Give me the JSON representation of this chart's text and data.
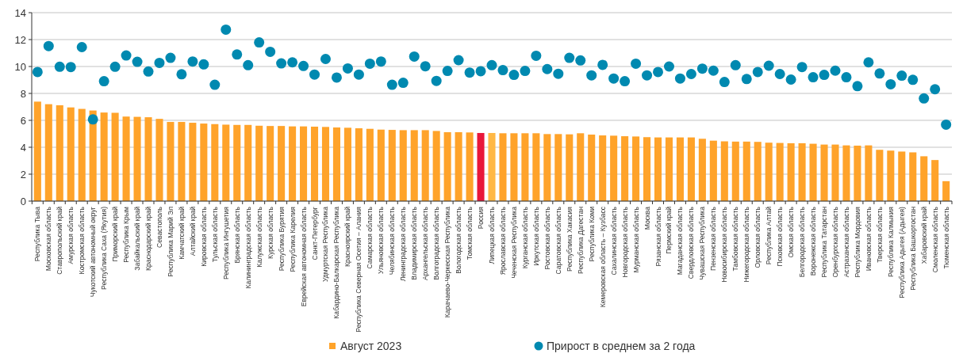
{
  "chart_data": {
    "type": "bar",
    "categories": [
      "Республика Тыва",
      "Московская область",
      "Ставропольский край",
      "Амурская область",
      "Костромская область",
      "Чукотский автономный округ",
      "Республика Саха (Якутия)",
      "Приморский край",
      "Республика Крым",
      "Забайкальский край",
      "Краснодарский край",
      "Севастополь",
      "Республика Марий Эл",
      "Камчатский край",
      "Алтайский край",
      "Кировская область",
      "Тульская область",
      "Республика Ингушетия",
      "Брянская область",
      "Калининградская область",
      "Калужская область",
      "Курская область",
      "Республика Бурятия",
      "Республика Карелия",
      "Еврейская автономная область",
      "Санкт-Петербург",
      "Удмуртская Республика",
      "Кабардино-Балкарская Республика",
      "Красноярский край",
      "Республика Северная Осетия – Алания",
      "Самарская область",
      "Ульяновская область",
      "Челябинская область",
      "Ленинградская область",
      "Владимирская область",
      "Архангельская область",
      "Волгоградская область",
      "Карачаево-Черкесская Республика",
      "Вологодская область",
      "Томская область",
      "Россия",
      "Липецкая область",
      "Ярославская область",
      "Чеченская Республика",
      "Курганская область",
      "Иркутская область",
      "Ростовская область",
      "Саратовская область",
      "Республика Хакасия",
      "Республика Дагестан",
      "Республика Коми",
      "Кемеровская область – Кузбасс",
      "Сахалинская область",
      "Новгородская область",
      "Мурманская область",
      "Москва",
      "Рязанская область",
      "Пермский край",
      "Магаданская область",
      "Свердловская область",
      "Чувашская Республика",
      "Пензенская область",
      "Новосибирская область",
      "Тамбовская область",
      "Нижегородская область",
      "Орловская область",
      "Республика Алтай",
      "Псковская область",
      "Омская область",
      "Белгородская область",
      "Воронежская область",
      "Республика Татарстан",
      "Оренбургская область",
      "Астраханская область",
      "Республика Мордовия",
      "Ивановская область",
      "Тверская область",
      "Республика Калмыкия",
      "Республика Адыгея (Адыгея)",
      "Республика Башкортостан",
      "Хабаровский край",
      "Смоленская область",
      "Тюменская область"
    ],
    "series": [
      {
        "name": "Август 2023",
        "color": "#ffa32a",
        "colors": [
          "#ffa32a",
          "#ffa32a",
          "#ffa32a",
          "#ffa32a",
          "#ffa32a",
          "#ffa32a",
          "#ffa32a",
          "#ffa32a",
          "#ffa32a",
          "#ffa32a",
          "#ffa32a",
          "#ffa32a",
          "#ffa32a",
          "#ffa32a",
          "#ffa32a",
          "#ffa32a",
          "#ffa32a",
          "#ffa32a",
          "#ffa32a",
          "#ffa32a",
          "#ffa32a",
          "#ffa32a",
          "#ffa32a",
          "#ffa32a",
          "#ffa32a",
          "#ffa32a",
          "#ffa32a",
          "#ffa32a",
          "#ffa32a",
          "#ffa32a",
          "#ffa32a",
          "#ffa32a",
          "#ffa32a",
          "#ffa32a",
          "#ffa32a",
          "#ffa32a",
          "#ffa32a",
          "#ffa32a",
          "#ffa32a",
          "#ffa32a",
          "#e8173a",
          "#ffb845",
          "#ffa32a",
          "#ffa32a",
          "#ffa32a",
          "#ffa32a",
          "#ffa32a",
          "#ffa32a",
          "#ffa32a",
          "#ffa32a",
          "#ffa32a",
          "#ffa32a",
          "#ffa32a",
          "#ffa32a",
          "#ffa32a",
          "#ffa32a",
          "#ffa32a",
          "#ffa32a",
          "#ffa32a",
          "#ffa32a",
          "#ffa32a",
          "#ffa32a",
          "#ffa32a",
          "#ffa32a",
          "#ffa32a",
          "#ffa32a",
          "#ffa32a",
          "#ffa32a",
          "#ffa32a",
          "#ffa32a",
          "#ffa32a",
          "#ffa32a",
          "#ffa32a",
          "#ffa32a",
          "#ffa32a",
          "#ffa32a",
          "#ffa32a",
          "#ffa32a",
          "#ffa32a",
          "#ffa32a",
          "#ffa32a",
          "#ffa32a",
          "#ffa32a"
        ],
        "values": [
          7.39,
          7.2,
          7.12,
          6.96,
          6.85,
          6.73,
          6.58,
          6.56,
          6.28,
          6.26,
          6.23,
          6.11,
          5.88,
          5.88,
          5.82,
          5.76,
          5.72,
          5.68,
          5.66,
          5.66,
          5.6,
          5.58,
          5.58,
          5.55,
          5.55,
          5.53,
          5.51,
          5.47,
          5.45,
          5.41,
          5.37,
          5.31,
          5.29,
          5.27,
          5.27,
          5.27,
          5.21,
          5.12,
          5.12,
          5.1,
          5.06,
          5.06,
          5.04,
          5.04,
          5.04,
          5.04,
          4.98,
          4.98,
          4.96,
          5.04,
          4.94,
          4.88,
          4.86,
          4.82,
          4.8,
          4.75,
          4.73,
          4.73,
          4.73,
          4.73,
          4.63,
          4.49,
          4.44,
          4.42,
          4.42,
          4.4,
          4.34,
          4.32,
          4.3,
          4.3,
          4.26,
          4.2,
          4.2,
          4.14,
          4.12,
          4.14,
          3.81,
          3.75,
          3.68,
          3.62,
          3.33,
          3.05,
          1.48
        ]
      },
      {
        "name": "Прирост в среднем за 2 года",
        "type": "scatter",
        "color": "#0089b0",
        "values": [
          9.59,
          11.52,
          9.98,
          9.96,
          11.44,
          6.07,
          8.91,
          9.98,
          10.82,
          10.35,
          9.63,
          10.27,
          10.64,
          9.42,
          10.37,
          10.16,
          8.64,
          12.74,
          10.89,
          10.1,
          11.79,
          11.09,
          10.23,
          10.31,
          10.04,
          9.4,
          10.56,
          9.18,
          9.86,
          9.4,
          10.21,
          10.37,
          8.64,
          8.79,
          10.74,
          10.02,
          8.93,
          9.67,
          10.47,
          9.55,
          9.65,
          10.1,
          9.73,
          9.38,
          9.67,
          10.8,
          9.81,
          9.46,
          10.64,
          10.45,
          9.34,
          10.12,
          9.11,
          8.91,
          10.21,
          9.34,
          9.59,
          10.0,
          9.11,
          9.44,
          9.84,
          9.69,
          8.85,
          10.1,
          9.07,
          9.59,
          10.06,
          9.44,
          9.03,
          9.96,
          9.2,
          9.38,
          9.69,
          9.2,
          8.54,
          10.31,
          9.48,
          8.68,
          9.32,
          9.01,
          7.63,
          8.31,
          5.68
        ]
      }
    ],
    "ylim": [
      0,
      14
    ],
    "yticks": [
      0,
      2,
      4,
      6,
      8,
      10,
      12,
      14
    ],
    "grid": "y",
    "legend": "bottom",
    "marker": "circle"
  }
}
